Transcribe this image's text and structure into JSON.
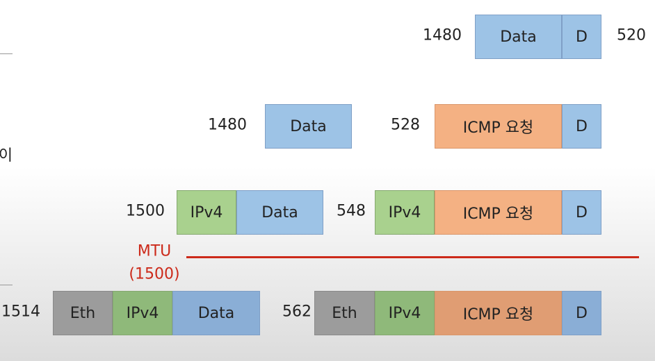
{
  "side_text": "이",
  "rows": [
    {
      "sizes": [
        "1480",
        "520"
      ],
      "boxes": [
        "Data",
        "D"
      ]
    },
    {
      "sizes": [
        "1480",
        "528"
      ],
      "boxes": [
        "Data",
        "ICMP 요청",
        "D"
      ]
    },
    {
      "sizes": [
        "1500",
        "548"
      ],
      "boxes": [
        "IPv4",
        "Data",
        "IPv4",
        "ICMP 요청",
        "D"
      ]
    },
    {
      "sizes": [
        "1514",
        "562"
      ],
      "boxes": [
        "Eth",
        "IPv4",
        "Data",
        "Eth",
        "IPv4",
        "ICMP 요청",
        "D"
      ]
    }
  ],
  "mtu": {
    "label": "MTU",
    "value": "(1500)"
  }
}
